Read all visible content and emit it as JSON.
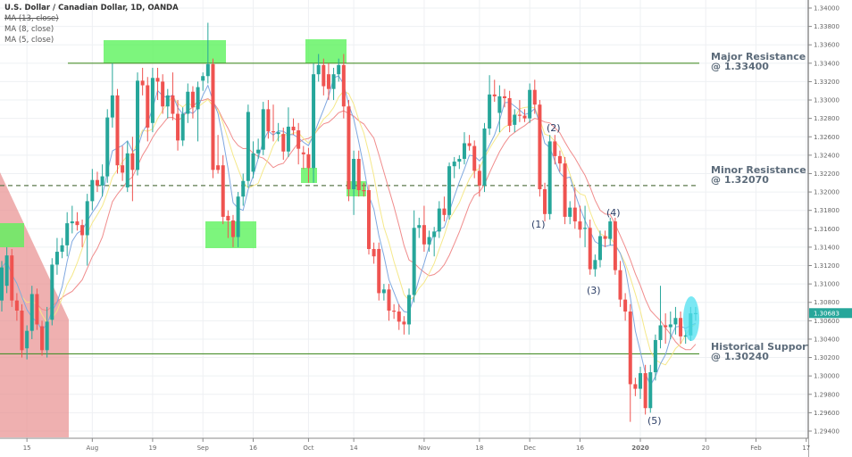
{
  "legend": {
    "title": "U.S. Dollar / Canadian Dollar, 1D, OANDA",
    "ma13": "MA (13, close)",
    "ma8": "MA (8, close)",
    "ma5": "MA (5, close)"
  },
  "colors": {
    "up": "#26a69a",
    "down": "#ef5350",
    "ma13": "#f08c8c",
    "ma8": "#f5e88a",
    "ma5": "#7fa8e0",
    "level": "#4a8f2c",
    "zone": "#5cf25c",
    "downtrend": "#e88f8f",
    "highlight": "#4fe0f0"
  },
  "chart_data": {
    "type": "candlestick",
    "symbol": "USD/CAD",
    "interval": "1D",
    "ylim": [
      1.293,
      1.341
    ],
    "grid": true,
    "candles_ohlc": [
      [
        1.3082,
        1.3125,
        1.307,
        1.3118
      ],
      [
        1.3098,
        1.314,
        1.309,
        1.3131
      ],
      [
        1.3131,
        1.3138,
        1.3075,
        1.3082
      ],
      [
        1.3082,
        1.309,
        1.306,
        1.3071
      ],
      [
        1.3071,
        1.3078,
        1.302,
        1.3028
      ],
      [
        1.303,
        1.3055,
        1.3018,
        1.3049
      ],
      [
        1.3049,
        1.3098,
        1.304,
        1.3089
      ],
      [
        1.3089,
        1.3095,
        1.305,
        1.3056
      ],
      [
        1.3054,
        1.306,
        1.3022,
        1.3028
      ],
      [
        1.3028,
        1.3075,
        1.302,
        1.3059
      ],
      [
        1.3061,
        1.3128,
        1.3055,
        1.3121
      ],
      [
        1.3121,
        1.315,
        1.311,
        1.3135
      ],
      [
        1.3135,
        1.315,
        1.3128,
        1.3142
      ],
      [
        1.3142,
        1.3178,
        1.313,
        1.3166
      ],
      [
        1.3166,
        1.3185,
        1.3155,
        1.3168
      ],
      [
        1.3168,
        1.3178,
        1.3158,
        1.3164
      ],
      [
        1.3164,
        1.317,
        1.314,
        1.3153
      ],
      [
        1.3153,
        1.3198,
        1.312,
        1.319
      ],
      [
        1.319,
        1.3225,
        1.318,
        1.3213
      ],
      [
        1.3213,
        1.3222,
        1.32,
        1.3207
      ],
      [
        1.3207,
        1.323,
        1.3195,
        1.3217
      ],
      [
        1.3217,
        1.329,
        1.321,
        1.3281
      ],
      [
        1.3281,
        1.334,
        1.327,
        1.3305
      ],
      [
        1.3305,
        1.3312,
        1.322,
        1.3229
      ],
      [
        1.3229,
        1.325,
        1.3212,
        1.3221
      ],
      [
        1.3205,
        1.3255,
        1.32,
        1.3242
      ],
      [
        1.3242,
        1.326,
        1.319,
        1.3224
      ],
      [
        1.3224,
        1.333,
        1.3218,
        1.3321
      ],
      [
        1.3321,
        1.3335,
        1.3305,
        1.3316
      ],
      [
        1.3316,
        1.3325,
        1.3255,
        1.327
      ],
      [
        1.3275,
        1.3335,
        1.3265,
        1.3324
      ],
      [
        1.3324,
        1.3335,
        1.33,
        1.332
      ],
      [
        1.332,
        1.3328,
        1.3285,
        1.3293
      ],
      [
        1.3293,
        1.3312,
        1.328,
        1.3305
      ],
      [
        1.3305,
        1.333,
        1.3278,
        1.3285
      ],
      [
        1.3285,
        1.33,
        1.3245,
        1.3256
      ],
      [
        1.3256,
        1.3292,
        1.325,
        1.3285
      ],
      [
        1.3285,
        1.3318,
        1.3275,
        1.3309
      ],
      [
        1.3309,
        1.3315,
        1.328,
        1.3292
      ],
      [
        1.329,
        1.332,
        1.3255,
        1.3314
      ],
      [
        1.3321,
        1.333,
        1.331,
        1.3326
      ],
      [
        1.3326,
        1.3384,
        1.3318,
        1.3339
      ],
      [
        1.3339,
        1.3345,
        1.3215,
        1.3224
      ],
      [
        1.3229,
        1.3262,
        1.322,
        1.3224
      ],
      [
        1.3229,
        1.324,
        1.3165,
        1.3173
      ],
      [
        1.3174,
        1.318,
        1.315,
        1.3169
      ],
      [
        1.3169,
        1.3175,
        1.314,
        1.3151
      ],
      [
        1.3151,
        1.32,
        1.314,
        1.3195
      ],
      [
        1.3195,
        1.322,
        1.3185,
        1.3212
      ],
      [
        1.3212,
        1.3295,
        1.3205,
        1.3287
      ],
      [
        1.3222,
        1.3255,
        1.3215,
        1.3242
      ],
      [
        1.3242,
        1.3258,
        1.3236,
        1.3246
      ],
      [
        1.3246,
        1.3298,
        1.324,
        1.329
      ],
      [
        1.329,
        1.33,
        1.3258,
        1.3266
      ],
      [
        1.3266,
        1.3295,
        1.3255,
        1.3265
      ],
      [
        1.3263,
        1.3275,
        1.3255,
        1.3265
      ],
      [
        1.3263,
        1.327,
        1.3235,
        1.3244
      ],
      [
        1.3244,
        1.3292,
        1.3238,
        1.3271
      ],
      [
        1.3271,
        1.328,
        1.3262,
        1.3267
      ],
      [
        1.3267,
        1.3275,
        1.323,
        1.3247
      ],
      [
        1.3243,
        1.325,
        1.3225,
        1.3241
      ],
      [
        1.3241,
        1.3248,
        1.321,
        1.3226
      ],
      [
        1.3226,
        1.334,
        1.321,
        1.3328
      ],
      [
        1.3328,
        1.335,
        1.332,
        1.3338
      ],
      [
        1.3338,
        1.3345,
        1.3305,
        1.3315
      ],
      [
        1.3328,
        1.334,
        1.33,
        1.3312
      ],
      [
        1.3312,
        1.3335,
        1.33,
        1.3328
      ],
      [
        1.3328,
        1.3345,
        1.332,
        1.3338
      ],
      [
        1.3338,
        1.335,
        1.328,
        1.3293
      ],
      [
        1.3293,
        1.33,
        1.319,
        1.3203
      ],
      [
        1.3203,
        1.3245,
        1.3175,
        1.3236
      ],
      [
        1.3236,
        1.3245,
        1.3195,
        1.3202
      ],
      [
        1.3202,
        1.321,
        1.3195,
        1.3201
      ],
      [
        1.3202,
        1.3208,
        1.3132,
        1.3138
      ],
      [
        1.3138,
        1.3145,
        1.3122,
        1.313
      ],
      [
        1.3138,
        1.3145,
        1.3082,
        1.309
      ],
      [
        1.309,
        1.31,
        1.3082,
        1.3094
      ],
      [
        1.3094,
        1.31,
        1.306,
        1.3071
      ],
      [
        1.3071,
        1.3078,
        1.3062,
        1.307
      ],
      [
        1.307,
        1.3078,
        1.305,
        1.3059
      ],
      [
        1.3059,
        1.3065,
        1.3045,
        1.3056
      ],
      [
        1.3056,
        1.3095,
        1.3045,
        1.3088
      ],
      [
        1.3088,
        1.318,
        1.308,
        1.3161
      ],
      [
        1.3161,
        1.3172,
        1.315,
        1.3164
      ],
      [
        1.3164,
        1.3185,
        1.3135,
        1.3143
      ],
      [
        1.3143,
        1.3158,
        1.3135,
        1.3151
      ],
      [
        1.3151,
        1.3162,
        1.313,
        1.3157
      ],
      [
        1.3157,
        1.319,
        1.315,
        1.3182
      ],
      [
        1.3182,
        1.3195,
        1.3168,
        1.3175
      ],
      [
        1.3175,
        1.3232,
        1.317,
        1.3228
      ],
      [
        1.3228,
        1.3238,
        1.3215,
        1.3233
      ],
      [
        1.3233,
        1.324,
        1.3225,
        1.3236
      ],
      [
        1.3236,
        1.3265,
        1.323,
        1.3253
      ],
      [
        1.3253,
        1.3262,
        1.3245,
        1.325
      ],
      [
        1.325,
        1.3256,
        1.3215,
        1.3223
      ],
      [
        1.3223,
        1.323,
        1.3195,
        1.3207
      ],
      [
        1.3207,
        1.3275,
        1.32,
        1.3269
      ],
      [
        1.3269,
        1.3327,
        1.3262,
        1.3306
      ],
      [
        1.3306,
        1.3322,
        1.3298,
        1.3304
      ],
      [
        1.3286,
        1.3316,
        1.3265,
        1.3304
      ],
      [
        1.3304,
        1.3312,
        1.3292,
        1.3302
      ],
      [
        1.3302,
        1.331,
        1.3265,
        1.3272
      ],
      [
        1.3273,
        1.329,
        1.3265,
        1.3284
      ],
      [
        1.3284,
        1.33,
        1.3276,
        1.3283
      ],
      [
        1.3283,
        1.329,
        1.3276,
        1.328
      ],
      [
        1.328,
        1.3318,
        1.3275,
        1.3311
      ],
      [
        1.3311,
        1.3322,
        1.3285,
        1.3295
      ],
      [
        1.3295,
        1.33,
        1.3195,
        1.3203
      ],
      [
        1.3203,
        1.321,
        1.3168,
        1.3176
      ],
      [
        1.3176,
        1.3262,
        1.317,
        1.3255
      ],
      [
        1.3255,
        1.3262,
        1.323,
        1.3239
      ],
      [
        1.3239,
        1.3245,
        1.3222,
        1.3231
      ],
      [
        1.3231,
        1.3238,
        1.3165,
        1.3173
      ],
      [
        1.3173,
        1.319,
        1.3165,
        1.3183
      ],
      [
        1.3183,
        1.3205,
        1.316,
        1.3168
      ],
      [
        1.3168,
        1.3185,
        1.315,
        1.3159
      ],
      [
        1.316,
        1.3185,
        1.314,
        1.3161
      ],
      [
        1.3161,
        1.317,
        1.311,
        1.3116
      ],
      [
        1.3116,
        1.3132,
        1.3108,
        1.3126
      ],
      [
        1.3126,
        1.3158,
        1.3118,
        1.3152
      ],
      [
        1.3152,
        1.3158,
        1.314,
        1.3149
      ],
      [
        1.3149,
        1.3172,
        1.3142,
        1.3168
      ],
      [
        1.3168,
        1.3172,
        1.311,
        1.3115
      ],
      [
        1.3115,
        1.3125,
        1.3075,
        1.3083
      ],
      [
        1.3083,
        1.309,
        1.306,
        1.307
      ],
      [
        1.307,
        1.3078,
        1.295,
        1.2991
      ],
      [
        1.2991,
        1.2998,
        1.2978,
        1.2986
      ],
      [
        1.2986,
        1.301,
        1.2975,
        1.3003
      ],
      [
        1.3003,
        1.3012,
        1.2958,
        1.2965
      ],
      [
        1.2965,
        1.3012,
        1.296,
        1.3004
      ],
      [
        1.3004,
        1.3045,
        1.2995,
        1.3039
      ],
      [
        1.3039,
        1.3098,
        1.303,
        1.3055
      ],
      [
        1.3055,
        1.3068,
        1.3035,
        1.3053
      ],
      [
        1.3053,
        1.307,
        1.304,
        1.3056
      ],
      [
        1.3056,
        1.3075,
        1.3045,
        1.3063
      ],
      [
        1.3063,
        1.307,
        1.3035,
        1.3043
      ],
      [
        1.3043,
        1.305,
        1.3035,
        1.3044
      ],
      [
        1.3044,
        1.3075,
        1.3038,
        1.3068
      ],
      [
        1.3068,
        1.3075,
        1.306,
        1.30683
      ]
    ],
    "moving_averages": [
      {
        "name": "MA (13, close)",
        "period": 13,
        "color_key": "ma13"
      },
      {
        "name": "MA (8, close)",
        "period": 8,
        "color_key": "ma8"
      },
      {
        "name": "MA (5, close)",
        "period": 5,
        "color_key": "ma5"
      }
    ],
    "y_ticks": [
      "1.34000",
      "1.33800",
      "1.33600",
      "1.33400",
      "1.33200",
      "1.33000",
      "1.32800",
      "1.32600",
      "1.32400",
      "1.32200",
      "1.32000",
      "1.31800",
      "1.31600",
      "1.31400",
      "1.31200",
      "1.31000",
      "1.30800",
      "1.30600",
      "1.30400",
      "1.30200",
      "1.30000",
      "1.29800",
      "1.29600",
      "1.29400"
    ],
    "x_ticks": [
      {
        "label": "15",
        "date": "2019-07-15"
      },
      {
        "label": "Aug",
        "date": "2019-08-01"
      },
      {
        "label": "19",
        "date": "2019-08-19"
      },
      {
        "label": "Sep",
        "date": "2019-09-02"
      },
      {
        "label": "16",
        "date": "2019-09-16"
      },
      {
        "label": "Oct",
        "date": "2019-10-01"
      },
      {
        "label": "14",
        "date": "2019-10-14"
      },
      {
        "label": "Nov",
        "date": "2019-11-01"
      },
      {
        "label": "18",
        "date": "2019-11-18"
      },
      {
        "label": "Dec",
        "date": "2019-12-02"
      },
      {
        "label": "16",
        "date": "2019-12-16"
      },
      {
        "label": "2020",
        "date": "2020-01-01"
      },
      {
        "label": "20",
        "date": "2020-01-20"
      },
      {
        "label": "Feb",
        "date": "2020-02-03"
      },
      {
        "label": "17",
        "date": "2020-02-17"
      }
    ],
    "last_price": "1.30683",
    "levels": [
      {
        "name": "major-resistance",
        "price": 1.334,
        "title": "Major Resistance",
        "value_label": "@ 1.33400",
        "style": "solid"
      },
      {
        "name": "minor-resistance",
        "price": 1.3207,
        "title": "Minor Resistance",
        "value_label": "@ 1.32070",
        "style": "dashed"
      },
      {
        "name": "historical-support",
        "price": 1.3024,
        "title": "Historical Support",
        "value_label": "@ 1.30240",
        "style": "solid"
      }
    ],
    "wave_labels": [
      "(1)",
      "(2)",
      "(3)",
      "(4)",
      "(5)"
    ]
  }
}
